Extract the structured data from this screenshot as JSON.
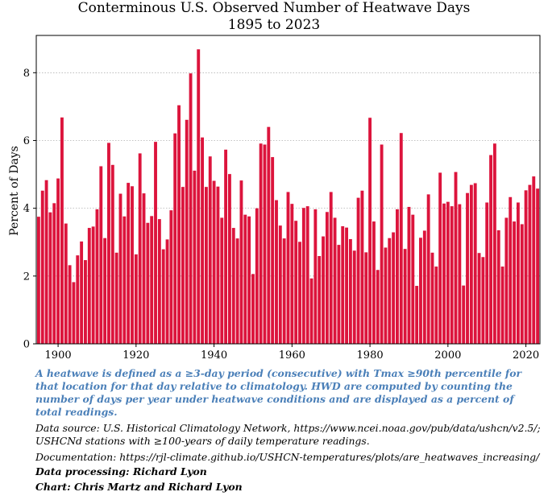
{
  "chart_data": {
    "type": "bar",
    "title_line1": "Conterminous U.S. Observed Number of Heatwave Days",
    "title_line2": "1895 to 2023",
    "xlabel": "",
    "ylabel": "Percent of Days",
    "xlim": [
      1894.4,
      2023.6
    ],
    "ylim": [
      0,
      9.1
    ],
    "x_ticks": [
      1900,
      1920,
      1940,
      1960,
      1980,
      2000,
      2020
    ],
    "y_ticks": [
      0,
      2,
      4,
      6,
      8
    ],
    "grid": "horizontal dotted at y ticks",
    "bar_color": "#dc143c",
    "start_year": 1895,
    "values": [
      3.75,
      4.52,
      4.83,
      3.88,
      4.15,
      4.88,
      6.68,
      3.55,
      2.32,
      1.82,
      2.61,
      3.02,
      2.47,
      3.42,
      3.46,
      3.97,
      5.24,
      3.12,
      5.93,
      5.28,
      2.69,
      4.43,
      3.76,
      4.75,
      4.65,
      2.64,
      5.62,
      4.44,
      3.57,
      3.77,
      5.96,
      3.68,
      2.79,
      3.08,
      3.94,
      6.21,
      7.04,
      4.63,
      6.61,
      7.98,
      5.11,
      8.69,
      6.09,
      4.63,
      5.53,
      4.81,
      4.64,
      3.72,
      5.73,
      5.01,
      3.42,
      3.11,
      4.82,
      3.81,
      3.76,
      2.06,
      4.0,
      5.91,
      5.88,
      6.4,
      5.51,
      4.24,
      3.49,
      3.11,
      4.48,
      4.13,
      3.63,
      3.01,
      4.01,
      4.06,
      1.93,
      3.97,
      2.59,
      3.17,
      3.89,
      4.48,
      3.72,
      2.92,
      3.47,
      3.43,
      3.09,
      2.75,
      4.31,
      4.52,
      2.7,
      6.67,
      3.61,
      2.18,
      5.88,
      2.84,
      3.12,
      3.29,
      3.97,
      6.22,
      2.8,
      4.04,
      3.81,
      1.71,
      3.13,
      3.34,
      4.41,
      2.69,
      2.28,
      5.05,
      4.14,
      4.19,
      4.06,
      5.07,
      4.12,
      1.72,
      4.45,
      4.69,
      4.74,
      2.68,
      2.56,
      4.17,
      5.57,
      5.91,
      3.35,
      2.28,
      3.72,
      4.33,
      3.61,
      4.17,
      3.53,
      4.53,
      4.69,
      4.94,
      4.58
    ]
  },
  "notes": {
    "definition": "A heatwave is defined as a ≥3-day period (consecutive) with Tmax ≥90th percentile for that location for that day relative to climatology. HWD are computed by counting the number of days per year under heatwave conditions and are displayed as a percent of total readings.",
    "data_source": "Data source: U.S. Historical Climatology Network, https://www.ncei.noaa.gov/pub/data/ushcn/v2.5/; USHCNd stations with ≥100-years of daily temperature readings.",
    "documentation": "Documentation: https://rjl-climate.github.io/USHCN-temperatures/plots/are_heatwaves_increasing/",
    "processing": "Data processing: Richard Lyon",
    "chart_credit": "Chart: Chris Martz and Richard Lyon"
  },
  "colors": {
    "bar": "#dc143c",
    "definition_text": "#4a7fb8",
    "grid": "#b0b0b0"
  }
}
